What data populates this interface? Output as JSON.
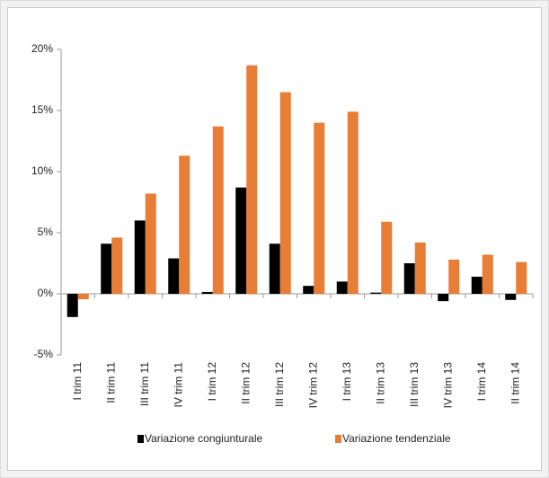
{
  "chart_data": {
    "type": "bar",
    "categories": [
      "I trim 11",
      "II trim 11",
      "III trim 11",
      "IV trim 11",
      "I trim 12",
      "II trim 12",
      "III trim 12",
      "IV trim 12",
      "I trim 13",
      "II trim 13",
      "III trim 13",
      "IV trim 13",
      "I trim 14",
      "II trim 14"
    ],
    "series": [
      {
        "name": "Variazione congiunturale",
        "color": "#000000",
        "values": [
          -1.9,
          4.1,
          6.0,
          2.9,
          0.15,
          8.7,
          4.1,
          0.65,
          1.0,
          0.1,
          2.5,
          -0.6,
          1.4,
          -0.5
        ]
      },
      {
        "name": "Variazione tendenziale",
        "color": "#e87d35",
        "values": [
          -0.45,
          4.6,
          8.2,
          11.3,
          13.7,
          18.7,
          16.5,
          14.0,
          14.9,
          5.9,
          4.2,
          2.8,
          3.2,
          2.6
        ]
      }
    ],
    "ylim": [
      -5,
      20
    ],
    "yticks": [
      {
        "value": -5,
        "label": "-5%"
      },
      {
        "value": 0,
        "label": "0%"
      },
      {
        "value": 5,
        "label": "5%"
      },
      {
        "value": 10,
        "label": "10%"
      },
      {
        "value": 15,
        "label": "15%"
      },
      {
        "value": 20,
        "label": "20%"
      }
    ],
    "grid": false,
    "legend": "bottom"
  }
}
